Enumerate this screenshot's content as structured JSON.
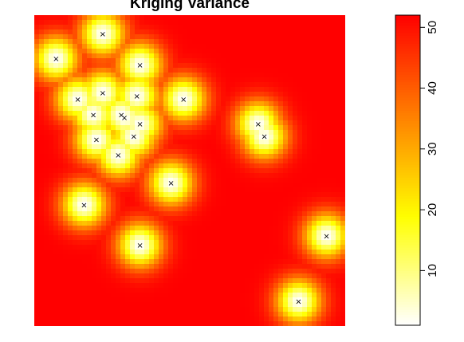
{
  "chart_data": {
    "type": "heatmap",
    "title": "Kriging Variance",
    "colormap": "heat",
    "colors": {
      "low": "#ffffff",
      "mid": "#ffff00",
      "high": "#ff0000"
    },
    "value_range": [
      1,
      52
    ],
    "colorbar_ticks": [
      10,
      20,
      30,
      40,
      50
    ],
    "xlim": [
      0,
      100
    ],
    "ylim": [
      0,
      100
    ],
    "points": [
      {
        "x": 22,
        "y": 94
      },
      {
        "x": 7,
        "y": 86
      },
      {
        "x": 34,
        "y": 84
      },
      {
        "x": 14,
        "y": 73
      },
      {
        "x": 22,
        "y": 75
      },
      {
        "x": 33,
        "y": 74
      },
      {
        "x": 48,
        "y": 73
      },
      {
        "x": 19,
        "y": 68
      },
      {
        "x": 28,
        "y": 68
      },
      {
        "x": 29,
        "y": 67
      },
      {
        "x": 34,
        "y": 65
      },
      {
        "x": 20,
        "y": 60
      },
      {
        "x": 32,
        "y": 61
      },
      {
        "x": 27,
        "y": 55
      },
      {
        "x": 72,
        "y": 65
      },
      {
        "x": 74,
        "y": 61
      },
      {
        "x": 44,
        "y": 46
      },
      {
        "x": 16,
        "y": 39
      },
      {
        "x": 34,
        "y": 26
      },
      {
        "x": 94,
        "y": 29
      },
      {
        "x": 85,
        "y": 8
      }
    ]
  }
}
